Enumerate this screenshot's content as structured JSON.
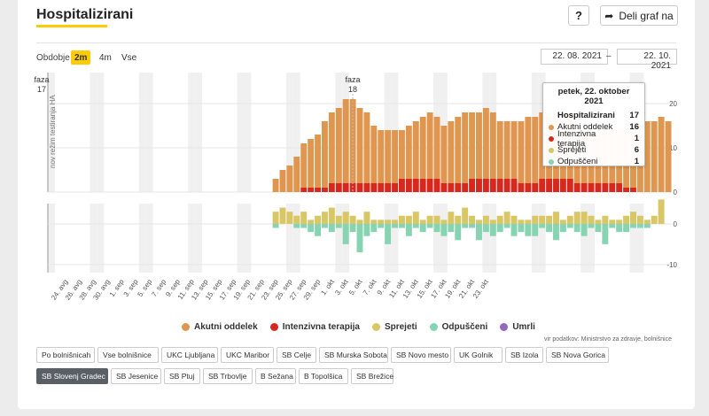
{
  "header": {
    "title": "Hospitalizirani",
    "help_label": "?",
    "share_label": "Deli graf na"
  },
  "period": {
    "label": "Obdobje",
    "options": [
      "2m",
      "4m",
      "Vse"
    ],
    "active": "2m",
    "date_from": "22. 08. 2021",
    "date_separator": "–",
    "date_to": "22. 10. 2021"
  },
  "annotations": {
    "phase17": "faza\n17",
    "phase17_line1": "faza",
    "phase17_line2": "17",
    "phase18_line1": "faza",
    "phase18_line2": "18",
    "vertical_note": "nov režim testiranja HA"
  },
  "tooltip": {
    "date": "petek, 22. oktober 2021",
    "rows": [
      {
        "label": "Hospitalizirani",
        "value": "17",
        "color": ""
      },
      {
        "label": "Akutni oddelek",
        "value": "16",
        "color": "#e0964e"
      },
      {
        "label": "Intenzivna terapija",
        "value": "1",
        "color": "#d8281e"
      },
      {
        "label": "Sprejeti",
        "value": "6",
        "color": "#d9c664"
      },
      {
        "label": "Odpuščeni",
        "value": "1",
        "color": "#86d4b1"
      }
    ]
  },
  "legend": [
    {
      "label": "Akutni oddelek",
      "color": "#e0964e"
    },
    {
      "label": "Intenzivna terapija",
      "color": "#d8281e"
    },
    {
      "label": "Sprejeti",
      "color": "#d9c664"
    },
    {
      "label": "Odpuščeni",
      "color": "#86d4b1"
    },
    {
      "label": "Umrli",
      "color": "#9467bd"
    }
  ],
  "source": "vir podatkov: Ministrstvo za zdravje, bolnišnice",
  "hospitals": {
    "row1": [
      "Po bolnišnicah",
      "Vse bolnišnice",
      "UKC Ljubljana",
      "UKC Maribor",
      "SB Celje",
      "SB Murska Sobota",
      "SB Novo mesto",
      "UK Golnik",
      "SB Izola",
      "SB Nova Gorica"
    ],
    "row2": [
      "SB Slovenj Gradec",
      "SB Jesenice",
      "SB Ptuj",
      "SB Trbovlje",
      "B Sežana",
      "B Topolšica",
      "SB Brežice"
    ],
    "active": "SB Slovenj Gradec"
  },
  "chart_data": {
    "type": "bar",
    "x_tick_labels": [
      "24. avg",
      "26. avg",
      "28. avg",
      "30. avg",
      "1. sep",
      "3. sep",
      "5. sep",
      "7. sep",
      "9. sep",
      "11. sep",
      "13. sep",
      "15. sep",
      "17. sep",
      "19. sep",
      "21. sep",
      "23. sep",
      "25. sep",
      "27. sep",
      "29. sep",
      "1. okt",
      "3. okt",
      "5. okt",
      "7. okt",
      "9. okt",
      "11. okt",
      "13. okt",
      "15. okt",
      "17. okt",
      "19. okt",
      "21. okt",
      "23. okt"
    ],
    "dates_start": "22. 08. 2021",
    "top_panel": {
      "y_ticks": [
        0,
        10,
        20
      ],
      "ylim": [
        0,
        27
      ],
      "series": [
        {
          "name": "Intenzivna terapija",
          "color": "#d8281e",
          "values": [
            0,
            0,
            0,
            0,
            0,
            0,
            0,
            0,
            0,
            0,
            0,
            0,
            0,
            0,
            0,
            0,
            0,
            0,
            0,
            0,
            0,
            0,
            0,
            0,
            0,
            0,
            0,
            0,
            0,
            0,
            0,
            0,
            0,
            0,
            0,
            0,
            1,
            1,
            1,
            1,
            2,
            2,
            2,
            2,
            2,
            2,
            2,
            2,
            2,
            2,
            3,
            3,
            3,
            3,
            3,
            3,
            2,
            2,
            2,
            2,
            3,
            3,
            3,
            3,
            3,
            3,
            3,
            2,
            2,
            2,
            3,
            3,
            3,
            3,
            3,
            2,
            2,
            2,
            2,
            2,
            2,
            2,
            1,
            1
          ]
        },
        {
          "name": "Akutni oddelek",
          "color": "#e0964e",
          "values": [
            0,
            0,
            0,
            0,
            0,
            0,
            0,
            0,
            0,
            0,
            0,
            0,
            0,
            0,
            0,
            0,
            0,
            0,
            0,
            0,
            0,
            0,
            0,
            0,
            0,
            0,
            0,
            0,
            0,
            0,
            0,
            0,
            3,
            5,
            6,
            8,
            10,
            11,
            12,
            15,
            16,
            17,
            19,
            19,
            17,
            16,
            13,
            12,
            12,
            12,
            11,
            12,
            13,
            14,
            15,
            14,
            13,
            14,
            15,
            16,
            15,
            15,
            16,
            15,
            13,
            13,
            13,
            14,
            15,
            15,
            15,
            14,
            15,
            16,
            14,
            12,
            12,
            12,
            12,
            12,
            12,
            12,
            13,
            14,
            15,
            16,
            16,
            17,
            16
          ]
        }
      ]
    },
    "bottom_panel": {
      "y_ticks": [
        -10,
        0
      ],
      "ylim": [
        -12,
        5
      ],
      "series": [
        {
          "name": "Sprejeti",
          "color": "#d9c664",
          "values": [
            0,
            0,
            0,
            0,
            0,
            0,
            0,
            0,
            0,
            0,
            0,
            0,
            0,
            0,
            0,
            0,
            0,
            0,
            0,
            0,
            0,
            0,
            0,
            0,
            0,
            0,
            0,
            0,
            0,
            0,
            0,
            0,
            3,
            4,
            3,
            2,
            3,
            1,
            2,
            3,
            4,
            2,
            3,
            2,
            1,
            3,
            1,
            1,
            1,
            1,
            2,
            2,
            3,
            1,
            2,
            2,
            1,
            3,
            2,
            4,
            2,
            1,
            2,
            1,
            2,
            3,
            2,
            1,
            1,
            2,
            2,
            2,
            3,
            1,
            2,
            3,
            3,
            2,
            1,
            2,
            1,
            1,
            2,
            3,
            2,
            1,
            2,
            6
          ]
        },
        {
          "name": "Odpuščeni",
          "color": "#86d4b1",
          "values": [
            0,
            0,
            0,
            0,
            0,
            0,
            0,
            0,
            0,
            0,
            0,
            0,
            0,
            0,
            0,
            0,
            0,
            0,
            0,
            0,
            0,
            0,
            0,
            0,
            0,
            0,
            0,
            0,
            0,
            0,
            0,
            0,
            -1,
            0,
            0,
            -1,
            -1,
            -2,
            -3,
            -1,
            -2,
            -1,
            -5,
            -2,
            -7,
            -3,
            -2,
            -1,
            -5,
            -1,
            -1,
            -3,
            -1,
            -2,
            -1,
            -2,
            -3,
            -2,
            -4,
            -1,
            -1,
            -4,
            -2,
            -3,
            -2,
            -1,
            -3,
            -2,
            -3,
            -3,
            -1,
            -2,
            -4,
            -2,
            -1,
            -2,
            -3,
            -1,
            -2,
            -5,
            -1,
            -2,
            -2,
            -1,
            -1,
            -1
          ]
        }
      ]
    }
  }
}
